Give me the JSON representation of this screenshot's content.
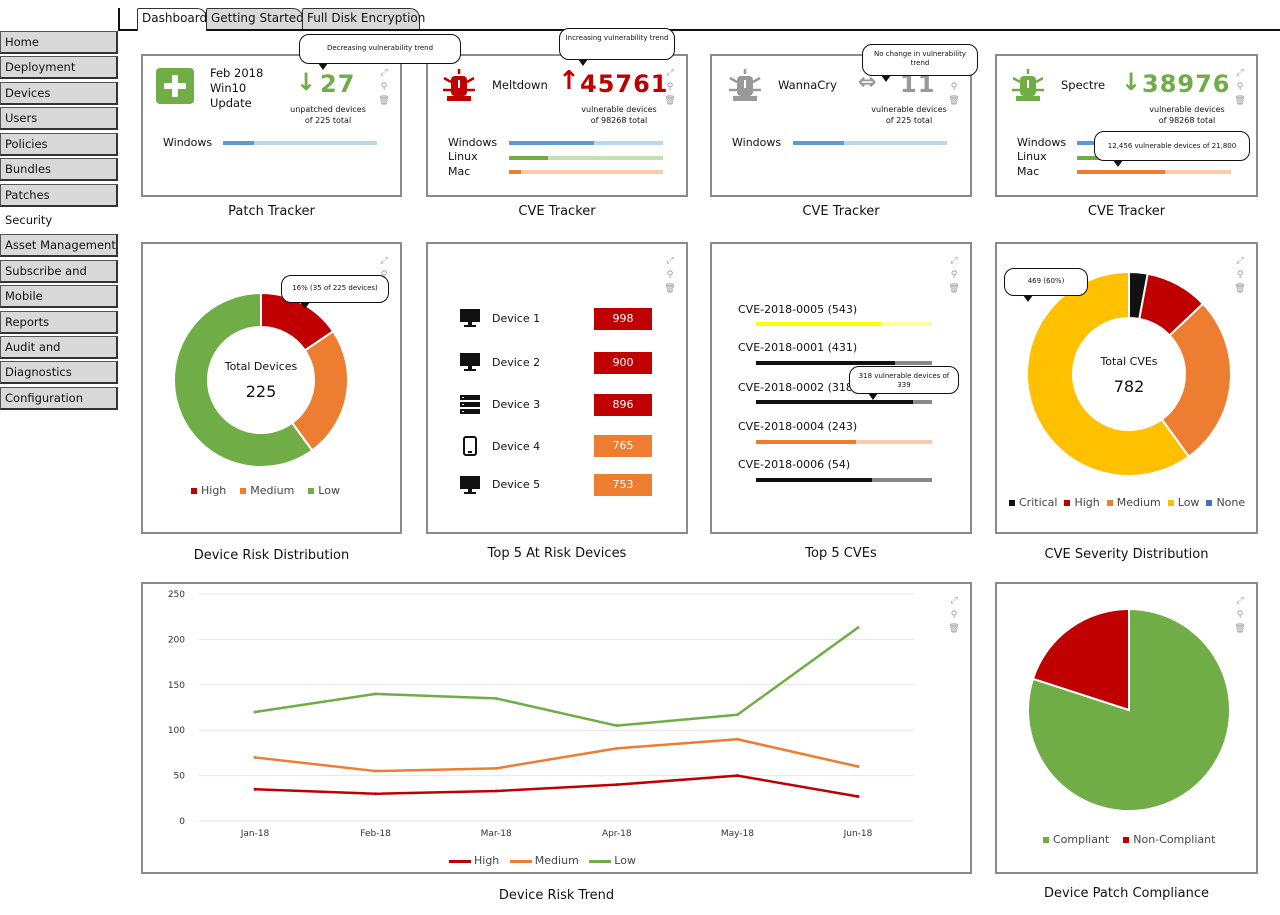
{
  "tabs": [
    {
      "label": "Dashboard",
      "active": true
    },
    {
      "label": "Getting Started",
      "active": false
    },
    {
      "label": "Full Disk Encryption",
      "active": false
    }
  ],
  "sidebar": {
    "items": [
      {
        "label": "Home"
      },
      {
        "label": "Deployment"
      },
      {
        "label": "Devices"
      },
      {
        "label": "Users"
      },
      {
        "label": "Policies"
      },
      {
        "label": "Bundles"
      },
      {
        "label": "Patches"
      },
      {
        "label": "Security",
        "active": true
      },
      {
        "label": "Asset Management"
      },
      {
        "label": "Subscribe and Share"
      },
      {
        "label": "Mobile Management"
      },
      {
        "label": "Reports"
      },
      {
        "label": "Audit and Messaging"
      },
      {
        "label": "Diagnostics"
      },
      {
        "label": "Configuration"
      }
    ]
  },
  "colors": {
    "red": "#c00000",
    "orange": "#ed7d31",
    "green": "#70ad47",
    "gold": "#ffc000",
    "blue": "#4472c4",
    "gray": "#999999",
    "yellow": "#ffff00"
  },
  "patch_tracker": {
    "caption": "Patch Tracker",
    "title_lines": [
      "Feb 2018",
      "Win10",
      "Update"
    ],
    "count": "27",
    "trend": "down",
    "sub1": "unpatched devices",
    "sub2": "of 225 total",
    "bubble": "Decreasing vulnerability trend",
    "rows": [
      {
        "label": "Windows",
        "fraction": 0.2,
        "color": "#5b9bd5"
      }
    ],
    "icon": "plus-shield-icon"
  },
  "cve_meltdown": {
    "caption": "CVE Tracker",
    "name": "Meltdown",
    "count": "45761",
    "trend": "up",
    "sub1": "vulnerable devices",
    "sub2": "of 98268 total",
    "bubble": "Increasing vulnerability trend",
    "rows": [
      {
        "label": "Windows",
        "fraction": 0.55,
        "color": "#5b9bd5"
      },
      {
        "label": "Linux",
        "fraction": 0.25,
        "color": "#70ad47"
      },
      {
        "label": "Mac",
        "fraction": 0.08,
        "color": "#ed7d31"
      }
    ],
    "icon": "bug-alert-icon"
  },
  "cve_wannacry": {
    "caption": "CVE Tracker",
    "name": "WannaCry",
    "count": "11",
    "trend": "flat",
    "sub1": "vulnerable devices",
    "sub2": "of 225 total",
    "bubble": "No change in vulnerability trend",
    "rows": [
      {
        "label": "Windows",
        "fraction": 0.33,
        "color": "#5b9bd5"
      }
    ],
    "icon": "bug-alert-icon"
  },
  "cve_spectre": {
    "caption": "CVE Tracker",
    "name": "Spectre",
    "count": "38976",
    "trend": "down",
    "sub1": "vulnerable devices",
    "sub2": "of 98268 total",
    "bubble": "12,456 vulnerable devices of 21,800",
    "rows": [
      {
        "label": "Windows",
        "fraction": 0.45,
        "color": "#5b9bd5"
      },
      {
        "label": "Linux",
        "fraction": 0.3,
        "color": "#70ad47"
      },
      {
        "label": "Mac",
        "fraction": 0.57,
        "color": "#ed7d31"
      }
    ],
    "icon": "bug-alert-icon"
  },
  "risk_distribution": {
    "caption": "Device Risk Distribution",
    "center_label": "Total Devices",
    "center_value": "225",
    "bubble": "16% (35 of 225 devices)",
    "chart_data": {
      "type": "pie",
      "categories": [
        "High",
        "Medium",
        "Low"
      ],
      "values": [
        35,
        55,
        135
      ],
      "colors": [
        "#c00000",
        "#ed7d31",
        "#70ad47"
      ],
      "legend": "bottom"
    }
  },
  "top_devices": {
    "caption": "Top 5 At Risk Devices",
    "items": [
      {
        "label": "Device 1",
        "score": "998",
        "icon": "monitor-icon",
        "color": "#c00000"
      },
      {
        "label": "Device 2",
        "score": "900",
        "icon": "monitor-icon",
        "color": "#c00000"
      },
      {
        "label": "Device 3",
        "score": "896",
        "icon": "server-icon",
        "color": "#c00000"
      },
      {
        "label": "Device 4",
        "score": "765",
        "icon": "tablet-icon",
        "color": "#ed7d31"
      },
      {
        "label": "Device 5",
        "score": "753",
        "icon": "monitor-icon",
        "color": "#ed7d31"
      }
    ]
  },
  "top_cves": {
    "caption": "Top 5 CVEs",
    "bubble": "318 vulnerable devices of 339",
    "items": [
      {
        "label": "CVE-2018-0005 (543)",
        "fraction": 0.71,
        "color": "#ffff00"
      },
      {
        "label": "CVE-2018-0001 (431)",
        "fraction": 0.79,
        "color": "#111111"
      },
      {
        "label": "CVE-2018-0002 (318)",
        "fraction": 0.89,
        "color": "#111111"
      },
      {
        "label": "CVE-2018-0004 (243)",
        "fraction": 0.57,
        "color": "#ed7d31"
      },
      {
        "label": "CVE-2018-0006 (54)",
        "fraction": 0.66,
        "color": "#111111"
      }
    ]
  },
  "cve_severity": {
    "caption": "CVE Severity Distribution",
    "center_label": "Total CVEs",
    "center_value": "782",
    "bubble": "469 (60%)",
    "chart_data": {
      "type": "pie",
      "categories": [
        "Critical",
        "High",
        "Medium",
        "Low",
        "None"
      ],
      "values": [
        23,
        78,
        212,
        469,
        0
      ],
      "colors": [
        "#111111",
        "#c00000",
        "#ed7d31",
        "#ffc000",
        "#4472c4"
      ],
      "legend": "bottom"
    }
  },
  "risk_trend": {
    "caption": "Device Risk Trend",
    "chart_data": {
      "type": "line",
      "categories": [
        "Jan-18",
        "Feb-18",
        "Mar-18",
        "Apr-18",
        "May-18",
        "Jun-18"
      ],
      "ylim": [
        0,
        250
      ],
      "yticks": [
        "0",
        "50",
        "100",
        "150",
        "200",
        "250"
      ],
      "series": [
        {
          "name": "High",
          "values": [
            35,
            30,
            33,
            40,
            50,
            27
          ],
          "color": "#c00000"
        },
        {
          "name": "Medium",
          "values": [
            70,
            55,
            58,
            80,
            90,
            60
          ],
          "color": "#ed7d31"
        },
        {
          "name": "Low",
          "values": [
            120,
            140,
            135,
            105,
            117,
            213
          ],
          "color": "#70ad47"
        }
      ],
      "legend": "bottom",
      "grid": true
    }
  },
  "patch_compliance": {
    "caption": "Device Patch Compliance",
    "chart_data": {
      "type": "pie",
      "categories": [
        "Compliant",
        "Non-Compliant"
      ],
      "values": [
        80,
        20
      ],
      "colors": [
        "#70ad47",
        "#c00000"
      ],
      "legend": "bottom"
    }
  }
}
